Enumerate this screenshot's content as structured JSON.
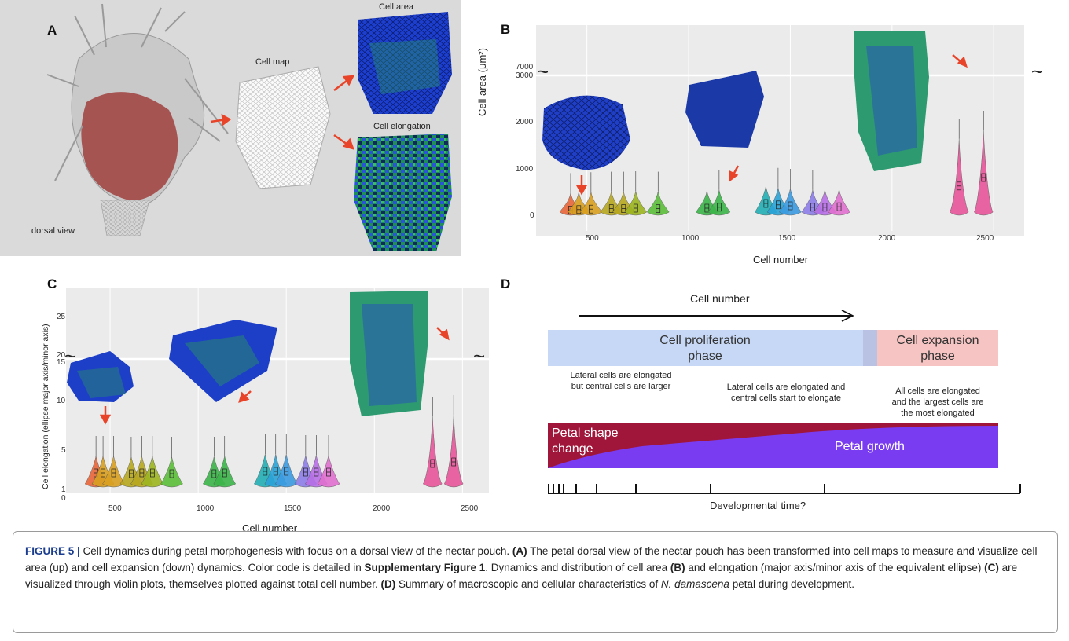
{
  "panels": {
    "A": {
      "letter": "A",
      "dorsal_view_label": "dorsal view",
      "cell_map_label": "Cell map",
      "cell_area_label": "Cell area",
      "cell_elongation_label": "Cell elongation"
    },
    "B": {
      "letter": "B",
      "ylabel": "Cell area (μm²)",
      "xlabel": "Cell number",
      "yticks": [
        "0",
        "1000",
        "2000",
        "3000",
        "7000"
      ],
      "xticks": [
        "500",
        "1000",
        "1500",
        "2000",
        "2500"
      ],
      "break_symbol": "~"
    },
    "C": {
      "letter": "C",
      "ylabel": "Cell elongation (ellipse major axis/minor axis)",
      "xlabel": "Cell number",
      "yticks": [
        "0",
        "1",
        "5",
        "10",
        "15",
        "20",
        "25"
      ],
      "xticks": [
        "500",
        "1000",
        "1500",
        "2000",
        "2500"
      ],
      "break_symbol": "~"
    },
    "D": {
      "letter": "D",
      "arrow_label": "Cell number",
      "proliferation_label": "Cell proliferation\nphase",
      "expansion_label": "Cell expansion\nphase",
      "note1": "Lateral cells are elongated\nbut central cells are larger",
      "note2": "Lateral cells are elongated and\ncentral cells start to elongate",
      "note3": "All cells are elongated\nand the largest cells are\nthe most elongated",
      "shape_change_label": "Petal shape\nchange",
      "growth_label": "Petal growth",
      "time_label": "Developmental time?"
    }
  },
  "chart_data": [
    {
      "type": "violin",
      "panel": "B",
      "xlabel": "Cell number",
      "ylabel": "Cell area (μm²)",
      "xlim": [
        250,
        2650
      ],
      "y_axis_break": [
        3000,
        7000
      ],
      "groups": [
        {
          "x": 420,
          "median": 110,
          "color": "#e8673a"
        },
        {
          "x": 460,
          "median": 120,
          "color": "#d9a021"
        },
        {
          "x": 520,
          "median": 130,
          "color": "#d9a021"
        },
        {
          "x": 620,
          "median": 140,
          "color": "#b8a820"
        },
        {
          "x": 680,
          "median": 140,
          "color": "#b8a820"
        },
        {
          "x": 740,
          "median": 150,
          "color": "#9db520"
        },
        {
          "x": 850,
          "median": 140,
          "color": "#5cbf3a"
        },
        {
          "x": 1090,
          "median": 150,
          "color": "#3db54a"
        },
        {
          "x": 1150,
          "median": 170,
          "color": "#3db54a"
        },
        {
          "x": 1380,
          "median": 250,
          "color": "#22b0b5"
        },
        {
          "x": 1440,
          "median": 220,
          "color": "#2aa3d8"
        },
        {
          "x": 1500,
          "median": 200,
          "color": "#3b9be0"
        },
        {
          "x": 1610,
          "median": 170,
          "color": "#8d7ee8"
        },
        {
          "x": 1670,
          "median": 170,
          "color": "#b86fe6"
        },
        {
          "x": 1740,
          "median": 180,
          "color": "#e070d0"
        },
        {
          "x": 2330,
          "median": 620,
          "color": "#e8559a"
        },
        {
          "x": 2450,
          "median": 800,
          "color": "#e8559a"
        }
      ]
    },
    {
      "type": "violin",
      "panel": "C",
      "xlabel": "Cell number",
      "ylabel": "Cell elongation (ellipse major axis/minor axis)",
      "xlim": [
        250,
        2650
      ],
      "y_axis_break": [
        15,
        20
      ],
      "groups": [
        {
          "x": 420,
          "median": 1.8,
          "color": "#e8673a"
        },
        {
          "x": 460,
          "median": 1.8,
          "color": "#d9a021"
        },
        {
          "x": 520,
          "median": 1.8,
          "color": "#d9a021"
        },
        {
          "x": 620,
          "median": 1.7,
          "color": "#b8a820"
        },
        {
          "x": 680,
          "median": 1.8,
          "color": "#b8a820"
        },
        {
          "x": 740,
          "median": 1.8,
          "color": "#9db520"
        },
        {
          "x": 850,
          "median": 1.7,
          "color": "#5cbf3a"
        },
        {
          "x": 1090,
          "median": 1.7,
          "color": "#3db54a"
        },
        {
          "x": 1150,
          "median": 1.8,
          "color": "#3db54a"
        },
        {
          "x": 1380,
          "median": 2.0,
          "color": "#22b0b5"
        },
        {
          "x": 1440,
          "median": 2.0,
          "color": "#2aa3d8"
        },
        {
          "x": 1500,
          "median": 2.0,
          "color": "#3b9be0"
        },
        {
          "x": 1610,
          "median": 1.9,
          "color": "#8d7ee8"
        },
        {
          "x": 1670,
          "median": 1.9,
          "color": "#b86fe6"
        },
        {
          "x": 1740,
          "median": 1.9,
          "color": "#e070d0"
        },
        {
          "x": 2330,
          "median": 3.0,
          "color": "#e8559a"
        },
        {
          "x": 2450,
          "median": 3.2,
          "color": "#e8559a"
        }
      ]
    }
  ],
  "caption": {
    "label": "FIGURE 5 |",
    "text_1": " Cell dynamics during petal morphogenesis with focus on a dorsal view of the nectar pouch. ",
    "a_label": "(A)",
    "text_2": " The petal dorsal view of the nectar pouch has been transformed into cell maps to measure and visualize cell area (up) and cell expansion (down) dynamics. Color code is detailed in ",
    "supp": "Supplementary Figure 1",
    "text_3": ". Dynamics and distribution of cell area ",
    "b_label": "(B)",
    "text_4": " and elongation (major axis/minor axis of the equivalent ellipse) ",
    "c_label": "(C)",
    "text_5": " are visualized through violin plots, themselves plotted against total cell number. ",
    "d_label": "(D)",
    "text_6": " Summary of macroscopic and cellular characteristics of ",
    "species": "N. damascena",
    "text_7": " petal during development."
  }
}
